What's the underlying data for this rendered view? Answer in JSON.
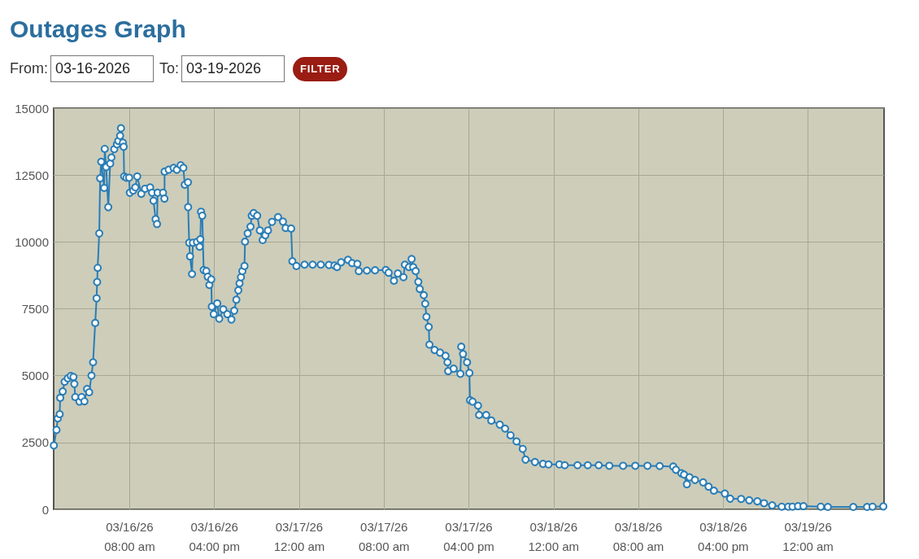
{
  "chart_data": {
    "type": "line",
    "title": "Outages Graph",
    "annotations": [
      "From:",
      "03-16-2026",
      "To:",
      "03-19-2026",
      "FILTER"
    ],
    "x": [
      "2026-03-16T00:51",
      "2026-03-16T01:06",
      "2026-03-16T01:13",
      "2026-03-16T01:24",
      "2026-03-16T01:27",
      "2026-03-16T01:41",
      "2026-03-16T01:52",
      "2026-03-16T02:10",
      "2026-03-16T02:27",
      "2026-03-16T02:42",
      "2026-03-16T02:47",
      "2026-03-16T02:52",
      "2026-03-16T03:16",
      "2026-03-16T03:28",
      "2026-03-16T03:44",
      "2026-03-16T03:59",
      "2026-03-16T04:11",
      "2026-03-16T04:24",
      "2026-03-16T04:33",
      "2026-03-16T04:45",
      "2026-03-16T04:53",
      "2026-03-16T04:56",
      "2026-03-16T04:59",
      "2026-03-16T05:08",
      "2026-03-16T05:13",
      "2026-03-16T05:19",
      "2026-03-16T05:36",
      "2026-03-16T05:39",
      "2026-03-16T05:47",
      "2026-03-16T05:59",
      "2026-03-16T06:10",
      "2026-03-16T06:17",
      "2026-03-16T06:33",
      "2026-03-16T06:48",
      "2026-03-16T06:56",
      "2026-03-16T07:06",
      "2026-03-16T07:11",
      "2026-03-16T07:22",
      "2026-03-16T07:26",
      "2026-03-16T07:29",
      "2026-03-16T07:42",
      "2026-03-16T07:57",
      "2026-03-16T08:01",
      "2026-03-16T08:20",
      "2026-03-16T08:32",
      "2026-03-16T08:43",
      "2026-03-16T09:06",
      "2026-03-16T09:27",
      "2026-03-16T09:56",
      "2026-03-16T10:07",
      "2026-03-16T10:15",
      "2026-03-16T10:27",
      "2026-03-16T10:35",
      "2026-03-16T10:38",
      "2026-03-16T11:09",
      "2026-03-16T11:17",
      "2026-03-16T11:18",
      "2026-03-16T11:41",
      "2026-03-16T12:09",
      "2026-03-16T12:27",
      "2026-03-16T12:49",
      "2026-03-16T13:04",
      "2026-03-16T13:12",
      "2026-03-16T13:30",
      "2026-03-16T13:31",
      "2026-03-16T13:37",
      "2026-03-16T13:42",
      "2026-03-16T13:53",
      "2026-03-16T13:58",
      "2026-03-16T14:21",
      "2026-03-16T14:36",
      "2026-03-16T14:40",
      "2026-03-16T14:44",
      "2026-03-16T14:51",
      "2026-03-16T14:59",
      "2026-03-16T15:14",
      "2026-03-16T15:22",
      "2026-03-16T15:31",
      "2026-03-16T15:42",
      "2026-03-16T15:45",
      "2026-03-16T15:56",
      "2026-03-16T16:16",
      "2026-03-16T16:27",
      "2026-03-16T16:50",
      "2026-03-16T17:13",
      "2026-03-16T17:36",
      "2026-03-16T17:52",
      "2026-03-16T18:04",
      "2026-03-16T18:15",
      "2026-03-16T18:22",
      "2026-03-16T18:30",
      "2026-03-16T18:38",
      "2026-03-16T18:50",
      "2026-03-16T18:53",
      "2026-03-16T19:08",
      "2026-03-16T19:24",
      "2026-03-16T19:31",
      "2026-03-16T19:42",
      "2026-03-16T20:02",
      "2026-03-16T20:17",
      "2026-03-16T20:33",
      "2026-03-16T20:48",
      "2026-03-16T21:03",
      "2026-03-16T21:26",
      "2026-03-16T22:00",
      "2026-03-16T22:28",
      "2026-03-16T22:43",
      "2026-03-16T23:14",
      "2026-03-16T23:21",
      "2026-03-16T23:44",
      "2026-03-17T00:30",
      "2026-03-17T01:16",
      "2026-03-17T02:02",
      "2026-03-17T02:48",
      "2026-03-17T03:19",
      "2026-03-17T03:34",
      "2026-03-17T03:57",
      "2026-03-17T04:36",
      "2026-03-17T04:59",
      "2026-03-17T05:29",
      "2026-03-17T05:37",
      "2026-03-17T06:23",
      "2026-03-17T07:09",
      "2026-03-17T08:10",
      "2026-03-17T08:26",
      "2026-03-17T08:56",
      "2026-03-17T09:18",
      "2026-03-17T09:50",
      "2026-03-17T09:58",
      "2026-03-17T10:21",
      "2026-03-17T10:36",
      "2026-03-17T10:45",
      "2026-03-17T10:59",
      "2026-03-17T11:14",
      "2026-03-17T11:22",
      "2026-03-17T11:45",
      "2026-03-17T11:53",
      "2026-03-17T12:00",
      "2026-03-17T12:13",
      "2026-03-17T12:17",
      "2026-03-17T12:46",
      "2026-03-17T13:17",
      "2026-03-17T13:48",
      "2026-03-17T13:59",
      "2026-03-17T14:03",
      "2026-03-17T14:34",
      "2026-03-17T15:12",
      "2026-03-17T15:17",
      "2026-03-17T15:27",
      "2026-03-17T15:50",
      "2026-03-17T16:03",
      "2026-03-17T16:07",
      "2026-03-17T16:21",
      "2026-03-17T16:52",
      "2026-03-17T16:58",
      "2026-03-17T17:38",
      "2026-03-17T18:07",
      "2026-03-17T18:55",
      "2026-03-17T19:25",
      "2026-03-17T19:56",
      "2026-03-17T20:30",
      "2026-03-17T21:05",
      "2026-03-17T21:21",
      "2026-03-17T22:14",
      "2026-03-17T23:00",
      "2026-03-17T23:31",
      "2026-03-18T00:32",
      "2026-03-18T01:03",
      "2026-03-18T02:15",
      "2026-03-18T03:13",
      "2026-03-18T04:15",
      "2026-03-18T05:15",
      "2026-03-18T06:33",
      "2026-03-18T07:42",
      "2026-03-18T08:51",
      "2026-03-18T10:00",
      "2026-03-18T11:17",
      "2026-03-18T11:32",
      "2026-03-18T12:03",
      "2026-03-18T12:18",
      "2026-03-18T12:34",
      "2026-03-18T12:49",
      "2026-03-18T13:20",
      "2026-03-18T14:06",
      "2026-03-18T14:37",
      "2026-03-18T15:07",
      "2026-03-18T16:09",
      "2026-03-18T16:39",
      "2026-03-18T17:41",
      "2026-03-18T18:27",
      "2026-03-18T19:13",
      "2026-03-18T19:51",
      "2026-03-18T20:37",
      "2026-03-18T21:31",
      "2026-03-18T22:08",
      "2026-03-18T22:32",
      "2026-03-18T23:03",
      "2026-03-18T23:34",
      "2026-03-19T01:12",
      "2026-03-19T01:52",
      "2026-03-19T04:16",
      "2026-03-19T05:34",
      "2026-03-19T06:05",
      "2026-03-19T07:06"
    ],
    "values": [
      2390,
      2970,
      3400,
      3560,
      4170,
      4410,
      4770,
      4900,
      4990,
      4950,
      4690,
      4200,
      4030,
      4200,
      4040,
      4500,
      4380,
      5000,
      5500,
      6970,
      7890,
      8500,
      9030,
      10320,
      12380,
      13000,
      12020,
      13480,
      12800,
      11300,
      12930,
      13160,
      13470,
      13650,
      13780,
      13970,
      14250,
      13710,
      13560,
      12450,
      12400,
      12400,
      11840,
      11920,
      12040,
      12450,
      11800,
      11990,
      12040,
      11840,
      11540,
      10850,
      10670,
      11840,
      11840,
      11620,
      12630,
      12700,
      12770,
      12700,
      12870,
      12770,
      12140,
      12230,
      11300,
      9970,
      9460,
      8800,
      9970,
      10000,
      9820,
      10100,
      11130,
      10980,
      8950,
      8910,
      8700,
      8390,
      8600,
      7580,
      7300,
      7700,
      7130,
      7480,
      7300,
      7100,
      7430,
      7840,
      8190,
      8450,
      8680,
      8910,
      9100,
      10010,
      10320,
      10570,
      10980,
      11080,
      10980,
      10430,
      10070,
      10250,
      10430,
      10750,
      10930,
      10760,
      10520,
      10500,
      9280,
      9100,
      9150,
      9150,
      9150,
      9140,
      9120,
      9060,
      9240,
      9330,
      9210,
      9180,
      8910,
      8930,
      8940,
      8950,
      8850,
      8550,
      8820,
      8680,
      9150,
      9060,
      9360,
      9060,
      8910,
      8510,
      8240,
      8010,
      7690,
      7200,
      6820,
      6160,
      5960,
      5860,
      5740,
      5500,
      5170,
      5260,
      5070,
      6080,
      5810,
      5500,
      5100,
      4080,
      4030,
      3880,
      3530,
      3530,
      3320,
      3170,
      3020,
      2770,
      2540,
      2260,
      1860,
      1770,
      1700,
      1680,
      1680,
      1650,
      1650,
      1650,
      1650,
      1630,
      1630,
      1630,
      1630,
      1620,
      1600,
      1480,
      1350,
      1300,
      940,
      1200,
      1100,
      1010,
      850,
      700,
      590,
      400,
      390,
      340,
      300,
      230,
      150,
      100,
      100,
      100,
      120,
      120,
      100,
      90,
      90,
      90,
      100,
      110
    ],
    "color": "#2a7db6",
    "xlim": [
      "2026-03-16T00:50",
      "2026-03-19T07:10"
    ],
    "xticks": [
      {
        "value": "2026-03-16T08:00",
        "label": "03/16/26\n08:00 am"
      },
      {
        "value": "2026-03-16T16:00",
        "label": "03/16/26\n04:00 pm"
      },
      {
        "value": "2026-03-17T00:00",
        "label": "03/17/26\n12:00 am"
      },
      {
        "value": "2026-03-17T08:00",
        "label": "03/17/26\n08:00 am"
      },
      {
        "value": "2026-03-17T16:00",
        "label": "03/17/26\n04:00 pm"
      },
      {
        "value": "2026-03-18T00:00",
        "label": "03/18/26\n12:00 am"
      },
      {
        "value": "2026-03-18T08:00",
        "label": "03/18/26\n08:00 am"
      },
      {
        "value": "2026-03-18T16:00",
        "label": "03/18/26\n04:00 pm"
      },
      {
        "value": "2026-03-19T00:00",
        "label": "03/19/26\n12:00 am"
      }
    ],
    "ylim": [
      0,
      15000
    ],
    "yticks": [
      0,
      2500,
      5000,
      7500,
      10000,
      12500,
      15000
    ],
    "grid": true,
    "marker": "circle",
    "line_style": "solid"
  }
}
